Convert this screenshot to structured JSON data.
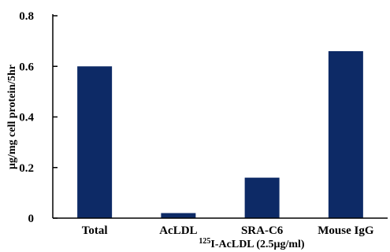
{
  "chart_data": {
    "type": "bar",
    "categories": [
      "Total",
      "AcLDL",
      "SRA-C6",
      "Mouse IgG"
    ],
    "values": [
      0.6,
      0.02,
      0.16,
      0.66
    ],
    "ylabel": "μg/mg cell protein/5hr",
    "xlabel_sup": "125",
    "xlabel_rest": "I-AcLDL (2.5μg/ml)",
    "ylim": [
      0,
      0.8
    ],
    "yticks": [
      0,
      0.2,
      0.4,
      0.6,
      0.8
    ],
    "ytick_labels": [
      "0",
      "0.2",
      "0.4",
      "0.6",
      "0.8"
    ],
    "bar_color": "#0d2a66",
    "grid": false,
    "legend": "none"
  }
}
